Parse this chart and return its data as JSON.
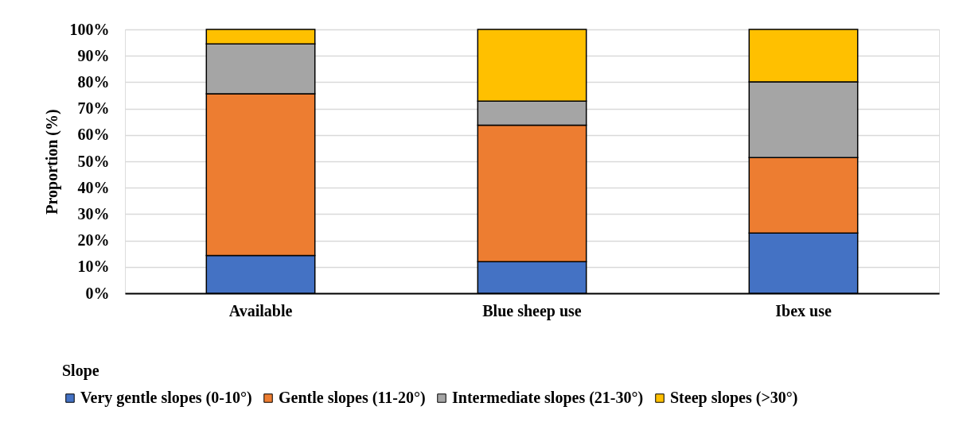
{
  "chart_data": {
    "type": "bar",
    "stacked": true,
    "ylabel": "Proportion (%)",
    "legend_title": "Slope",
    "categories": [
      "Available",
      "Blue sheep use",
      "Ibex use"
    ],
    "series": [
      {
        "name": "Very gentle slopes (0-10°)",
        "color": "#4472c4",
        "values": [
          14.3,
          12.0,
          22.8
        ]
      },
      {
        "name": "Gentle slopes (11-20°)",
        "color": "#ed7d31",
        "values": [
          61.3,
          51.7,
          28.6
        ]
      },
      {
        "name": "Intermediate slopes (21-30°)",
        "color": "#a5a5a5",
        "values": [
          18.9,
          9.1,
          28.7
        ]
      },
      {
        "name": "Steep slopes (>30°)",
        "color": "#ffc000",
        "values": [
          5.5,
          27.2,
          19.9
        ]
      }
    ],
    "ylim": [
      0,
      100
    ],
    "yticks": [
      {
        "value": 0,
        "label": "0%"
      },
      {
        "value": 10,
        "label": "10%"
      },
      {
        "value": 20,
        "label": "20%"
      },
      {
        "value": 30,
        "label": "30%"
      },
      {
        "value": 40,
        "label": "40%"
      },
      {
        "value": 50,
        "label": "50%"
      },
      {
        "value": 60,
        "label": "60%"
      },
      {
        "value": 70,
        "label": "70%"
      },
      {
        "value": 80,
        "label": "80%"
      },
      {
        "value": 90,
        "label": "90%"
      },
      {
        "value": 100,
        "label": "100%"
      }
    ],
    "grid": "y",
    "legend": "bottom"
  }
}
